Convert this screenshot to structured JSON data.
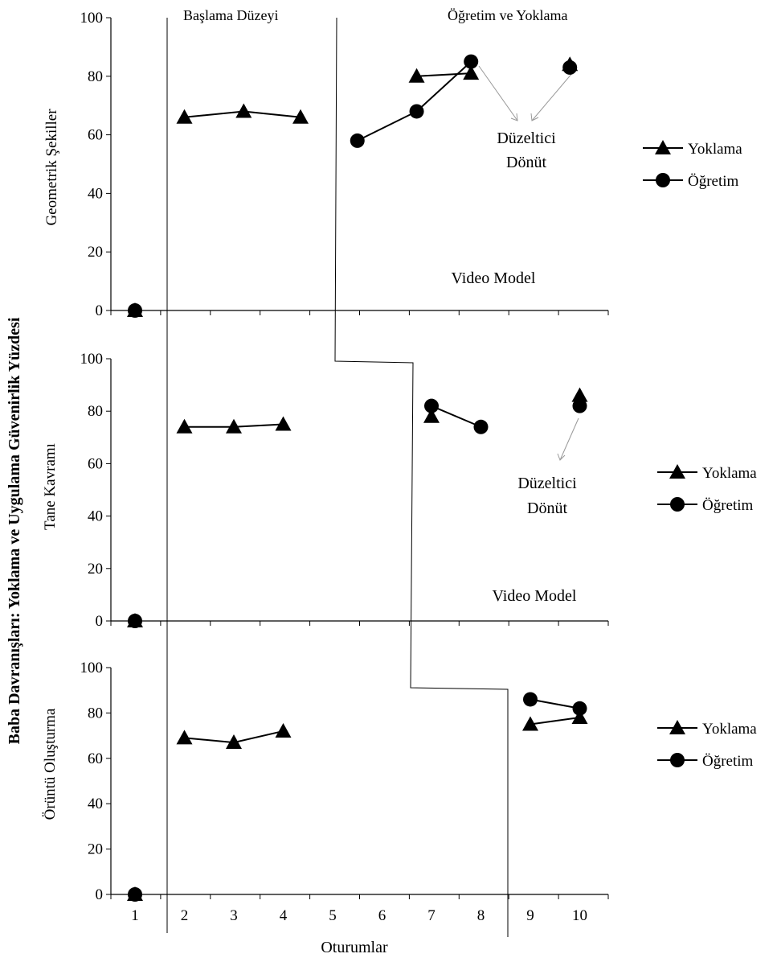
{
  "figure": {
    "y_title": "Baba Davranışları: Yoklama ve Uygulama Güvenirlik Yüzdesi",
    "x_title": "Oturumlar",
    "phase_labels": {
      "baseline": "Başlama Düzeyi",
      "treatment": "Öğretim ve Yoklama"
    },
    "x_ticks": [
      "1",
      "2",
      "3",
      "4",
      "5",
      "6",
      "7",
      "8",
      "9",
      "10"
    ],
    "y_ticks": [
      "0",
      "20",
      "40",
      "60",
      "80",
      "100"
    ]
  },
  "panels": [
    {
      "ylabel": "Geometrik Şekiller",
      "annotation_lines": [
        "Düzeltici",
        "Dönüt"
      ],
      "video_model_label": "Video Model",
      "legend": {
        "yoklama": "Yoklama",
        "ogretim": "Öğretim"
      }
    },
    {
      "ylabel": "Tane Kavramı",
      "annotation_lines": [
        "Düzeltici",
        "Dönüt"
      ],
      "video_model_label": "Video Model",
      "legend": {
        "yoklama": "Yoklama",
        "ogretim": "Öğretim"
      }
    },
    {
      "ylabel": "Örüntü Oluşturma",
      "legend": {
        "yoklama": "Yoklama",
        "ogretim": "Öğretim"
      }
    }
  ],
  "chart_data": [
    {
      "type": "line",
      "xlabel": "Oturumlar",
      "ylabel": "Geometrik Şekiller",
      "ylim": [
        0,
        100
      ],
      "xlim": [
        1,
        10
      ],
      "series": [
        {
          "name": "Yoklama",
          "marker": "triangle",
          "segments": [
            [
              [
                1,
                0
              ]
            ],
            [
              [
                2,
                66
              ],
              [
                3.2,
                68
              ],
              [
                4.35,
                66
              ]
            ],
            [
              [
                6.7,
                80
              ],
              [
                7.8,
                81
              ]
            ],
            [
              [
                9.8,
                84
              ]
            ]
          ]
        },
        {
          "name": "Öğretim",
          "marker": "circle",
          "segments": [
            [
              [
                1,
                0
              ]
            ],
            [
              [
                5.5,
                58
              ],
              [
                6.7,
                68
              ],
              [
                7.8,
                85
              ]
            ],
            [
              [
                9.8,
                83
              ]
            ]
          ]
        }
      ]
    },
    {
      "type": "line",
      "xlabel": "Oturumlar",
      "ylabel": "Tane Kavramı",
      "ylim": [
        0,
        100
      ],
      "xlim": [
        1,
        10
      ],
      "series": [
        {
          "name": "Yoklama",
          "marker": "triangle",
          "segments": [
            [
              [
                1,
                0
              ]
            ],
            [
              [
                2,
                74
              ],
              [
                3,
                74
              ],
              [
                4,
                75
              ]
            ],
            [
              [
                7,
                78
              ]
            ],
            [
              [
                10,
                86
              ]
            ]
          ]
        },
        {
          "name": "Öğretim",
          "marker": "circle",
          "segments": [
            [
              [
                1,
                0
              ]
            ],
            [
              [
                7,
                82
              ],
              [
                8,
                74
              ]
            ],
            [
              [
                10,
                82
              ]
            ]
          ]
        }
      ]
    },
    {
      "type": "line",
      "xlabel": "Oturumlar",
      "ylabel": "Örüntü Oluşturma",
      "ylim": [
        0,
        100
      ],
      "xlim": [
        1,
        10
      ],
      "series": [
        {
          "name": "Yoklama",
          "marker": "triangle",
          "segments": [
            [
              [
                1,
                0
              ]
            ],
            [
              [
                2,
                69
              ],
              [
                3,
                67
              ],
              [
                4,
                72
              ]
            ],
            [
              [
                9,
                75
              ],
              [
                10,
                78
              ]
            ]
          ]
        },
        {
          "name": "Öğretim",
          "marker": "circle",
          "segments": [
            [
              [
                1,
                0
              ]
            ],
            [
              [
                9,
                86
              ],
              [
                10,
                82
              ]
            ]
          ]
        }
      ]
    }
  ]
}
